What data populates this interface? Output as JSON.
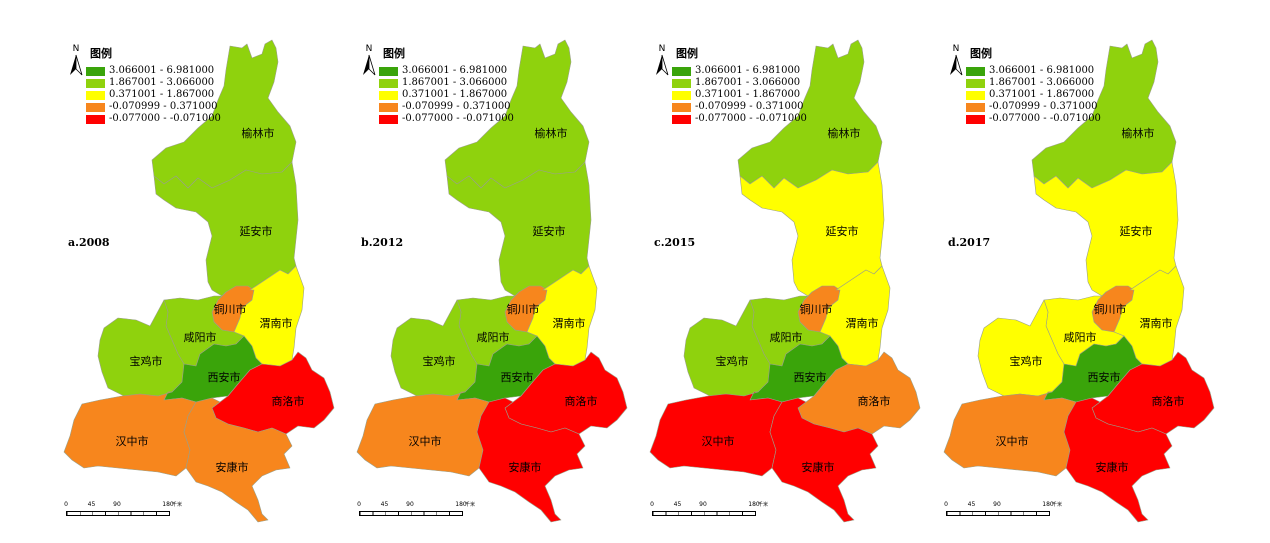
{
  "legend": {
    "title": "图例",
    "classes": [
      {
        "range": "3.066001 - 6.981000",
        "color": "#3aa40a"
      },
      {
        "range": "1.867001 - 3.066000",
        "color": "#8fd20d"
      },
      {
        "range": "0.371001 - 1.867000",
        "color": "#ffff00"
      },
      {
        "range": "-0.070999 - 0.371000",
        "color": "#f7861d"
      },
      {
        "range": "-0.077000 - -0.071000",
        "color": "#ff0000"
      }
    ]
  },
  "north_label": "N",
  "scale": {
    "ticks": [
      "0",
      "45",
      "90",
      "180"
    ],
    "unit": "千米"
  },
  "cities": [
    {
      "key": "yulin",
      "name": "榆林市"
    },
    {
      "key": "yanan",
      "name": "延安市"
    },
    {
      "key": "tongchuan",
      "name": "铜川市"
    },
    {
      "key": "weinan",
      "name": "渭南市"
    },
    {
      "key": "xianyang",
      "name": "咸阳市"
    },
    {
      "key": "baoji",
      "name": "宝鸡市"
    },
    {
      "key": "xian",
      "name": "西安市"
    },
    {
      "key": "shangluo",
      "name": "商洛市"
    },
    {
      "key": "hanzhong",
      "name": "汉中市"
    },
    {
      "key": "ankang",
      "name": "安康市"
    }
  ],
  "panels": [
    {
      "label": "a.2008",
      "classes": {
        "yulin": 1,
        "yanan": 1,
        "tongchuan": 3,
        "weinan": 2,
        "xianyang": 1,
        "baoji": 1,
        "xian": 0,
        "shangluo": 4,
        "hanzhong": 3,
        "ankang": 3
      }
    },
    {
      "label": "b.2012",
      "classes": {
        "yulin": 1,
        "yanan": 1,
        "tongchuan": 3,
        "weinan": 2,
        "xianyang": 1,
        "baoji": 1,
        "xian": 0,
        "shangluo": 4,
        "hanzhong": 3,
        "ankang": 4
      }
    },
    {
      "label": "c.2015",
      "classes": {
        "yulin": 1,
        "yanan": 2,
        "tongchuan": 3,
        "weinan": 2,
        "xianyang": 1,
        "baoji": 1,
        "xian": 0,
        "shangluo": 3,
        "hanzhong": 4,
        "ankang": 4
      }
    },
    {
      "label": "d.2017",
      "classes": {
        "yulin": 1,
        "yanan": 2,
        "tongchuan": 3,
        "weinan": 2,
        "xianyang": 2,
        "baoji": 2,
        "xian": 0,
        "shangluo": 4,
        "hanzhong": 3,
        "ankang": 4
      }
    }
  ]
}
